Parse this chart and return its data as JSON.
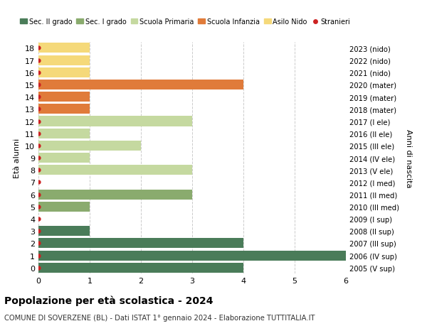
{
  "ages": [
    18,
    17,
    16,
    15,
    14,
    13,
    12,
    11,
    10,
    9,
    8,
    7,
    6,
    5,
    4,
    3,
    2,
    1,
    0
  ],
  "years": [
    "2005 (V sup)",
    "2006 (IV sup)",
    "2007 (III sup)",
    "2008 (II sup)",
    "2009 (I sup)",
    "2010 (III med)",
    "2011 (II med)",
    "2012 (I med)",
    "2013 (V ele)",
    "2014 (IV ele)",
    "2015 (III ele)",
    "2016 (II ele)",
    "2017 (I ele)",
    "2018 (mater)",
    "2019 (mater)",
    "2020 (mater)",
    "2021 (nido)",
    "2022 (nido)",
    "2023 (nido)"
  ],
  "values": [
    4,
    6,
    4,
    1,
    0,
    1,
    3,
    0,
    3,
    1,
    2,
    1,
    3,
    1,
    1,
    4,
    1,
    1,
    1
  ],
  "colors": [
    "#4a7c59",
    "#4a7c59",
    "#4a7c59",
    "#4a7c59",
    "#4a7c59",
    "#8aab6e",
    "#8aab6e",
    "#8aab6e",
    "#c5d9a0",
    "#c5d9a0",
    "#c5d9a0",
    "#c5d9a0",
    "#c5d9a0",
    "#e07b3a",
    "#e07b3a",
    "#e07b3a",
    "#f5d97a",
    "#f5d97a",
    "#f5d97a"
  ],
  "legend_labels": [
    "Sec. II grado",
    "Sec. I grado",
    "Scuola Primaria",
    "Scuola Infanzia",
    "Asilo Nido",
    "Stranieri"
  ],
  "legend_colors": [
    "#4a7c59",
    "#8aab6e",
    "#c5d9a0",
    "#e07b3a",
    "#f5d97a",
    "#cc2222"
  ],
  "ylabel_left": "Età alunni",
  "ylabel_right": "Anni di nascita",
  "title": "Popolazione per età scolastica - 2024",
  "subtitle": "COMUNE DI SOVERZENE (BL) - Dati ISTAT 1° gennaio 2024 - Elaborazione TUTTITALIA.IT",
  "xlim": [
    0,
    6
  ],
  "background_color": "#ffffff",
  "grid_color": "#cccccc",
  "stranieri_color": "#cc2222",
  "bar_height": 0.82
}
